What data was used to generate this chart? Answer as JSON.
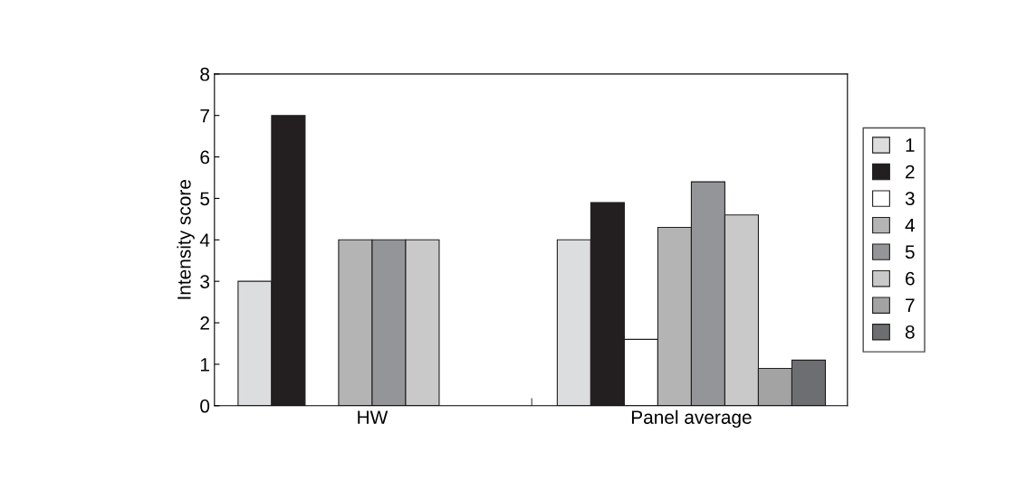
{
  "chart_data": {
    "type": "bar",
    "ylabel": "Intensity score",
    "categories": [
      "HW",
      "Panel average"
    ],
    "ylim": [
      0,
      8
    ],
    "yticks": [
      0,
      1,
      2,
      3,
      4,
      5,
      6,
      7,
      8
    ],
    "legend": "right",
    "series": [
      {
        "name": "1",
        "color": "#dcdddf",
        "values": [
          3,
          4
        ]
      },
      {
        "name": "2",
        "color": "#231f20",
        "values": [
          7,
          4.9
        ]
      },
      {
        "name": "3",
        "color": "#ffffff",
        "values": [
          null,
          1.6
        ]
      },
      {
        "name": "4",
        "color": "#b4b4b4",
        "values": [
          4,
          4.3
        ]
      },
      {
        "name": "5",
        "color": "#939598",
        "values": [
          4,
          5.4
        ]
      },
      {
        "name": "6",
        "color": "#c9c9c9",
        "values": [
          4,
          4.6
        ]
      },
      {
        "name": "7",
        "color": "#a3a3a3",
        "values": [
          null,
          0.9
        ]
      },
      {
        "name": "8",
        "color": "#6d6e71",
        "values": [
          null,
          1.1
        ]
      }
    ]
  }
}
